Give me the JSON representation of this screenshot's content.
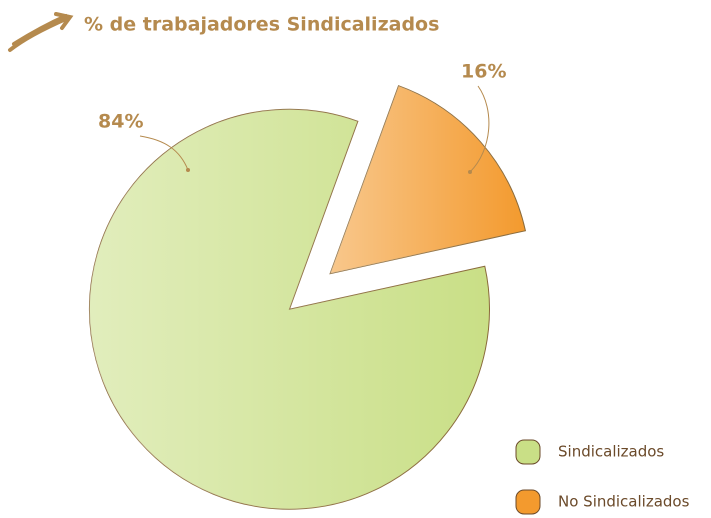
{
  "chart_data": {
    "type": "pie",
    "title": "% de trabajadores Sindicalizados",
    "categories": [
      "Sindicalizados",
      "No Sindicalizados"
    ],
    "values": [
      84,
      16
    ],
    "value_labels": [
      "84%",
      "16%"
    ],
    "colors": [
      "#c9df86",
      "#f39a2e"
    ]
  }
}
